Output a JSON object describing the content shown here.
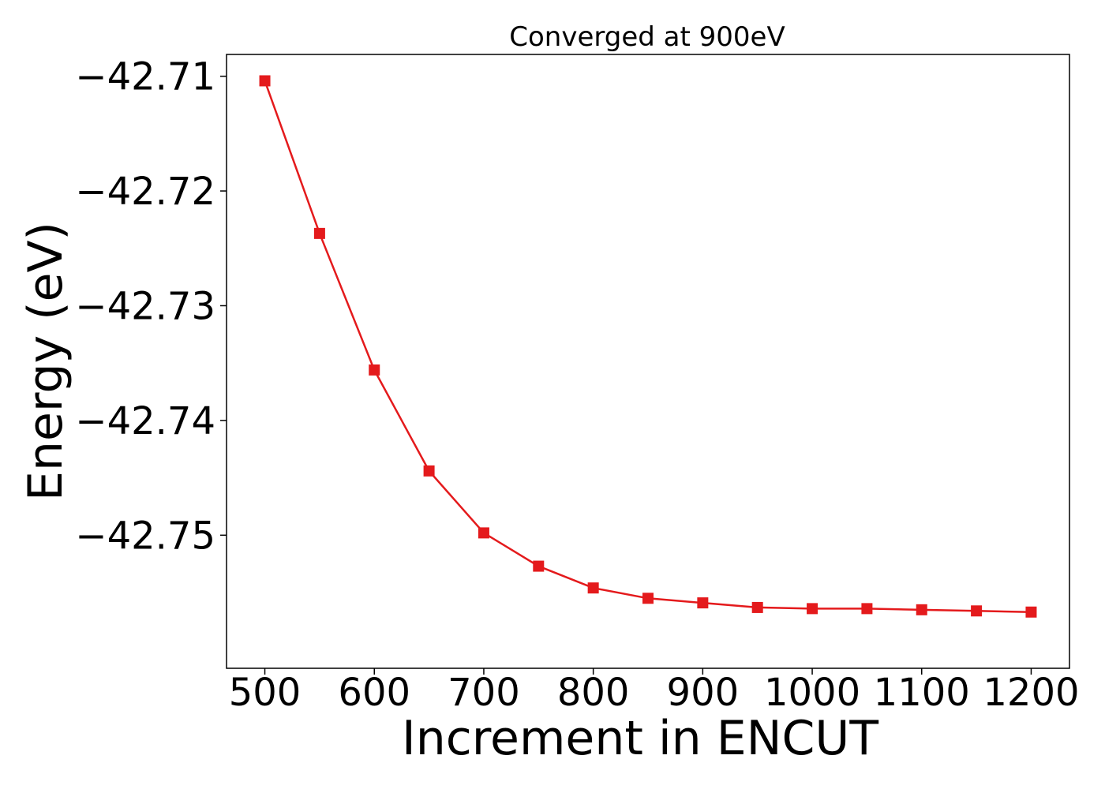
{
  "chart_data": {
    "type": "line",
    "title": "Converged at 900eV",
    "xlabel": "Increment in ENCUT",
    "ylabel": "Energy (eV)",
    "x": [
      500,
      550,
      600,
      650,
      700,
      750,
      800,
      850,
      900,
      950,
      1000,
      1050,
      1100,
      1150,
      1200
    ],
    "series": [
      {
        "values": [
          -42.7104,
          -42.7237,
          -42.7356,
          -42.7444,
          -42.7498,
          -42.7527,
          -42.7546,
          -42.7555,
          -42.7559,
          -42.7563,
          -42.7564,
          -42.7564,
          -42.7565,
          -42.7566,
          -42.7567
        ],
        "color": "#e41a1c",
        "marker": "square"
      }
    ],
    "xticks": [
      "500",
      "600",
      "700",
      "800",
      "900",
      "1000",
      "1100",
      "1200"
    ],
    "xtick_values": [
      500,
      600,
      700,
      800,
      900,
      1000,
      1100,
      1200
    ],
    "yticks": [
      "−42.71",
      "−42.72",
      "−42.73",
      "−42.74",
      "−42.75"
    ],
    "ytick_values": [
      -42.71,
      -42.72,
      -42.73,
      -42.74,
      -42.75
    ],
    "xlim": [
      465,
      1235
    ],
    "ylim": [
      -42.7616,
      -42.7081
    ],
    "grid": false,
    "legend": false
  }
}
